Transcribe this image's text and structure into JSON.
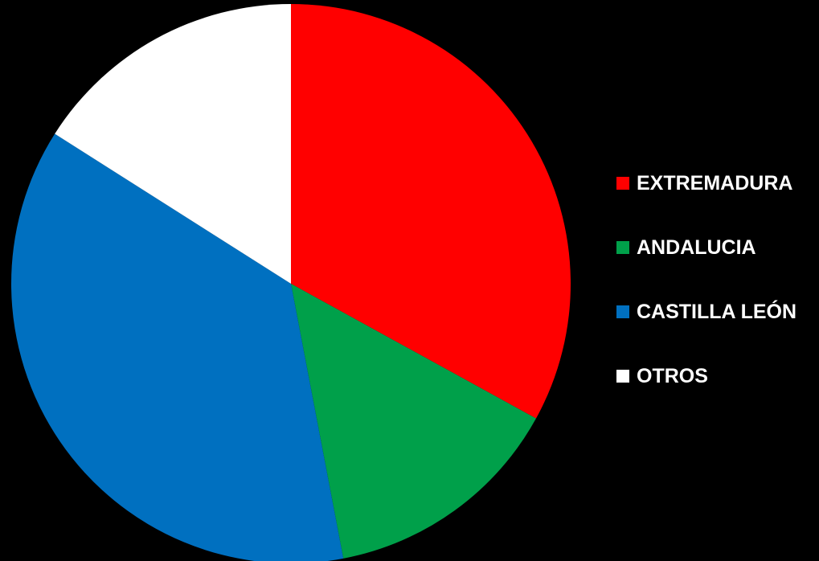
{
  "chart_data": {
    "type": "pie",
    "categories": [
      "EXTREMADURA",
      "ANDALUCIA",
      "CASTILLA LEÓN",
      "OTROS"
    ],
    "values": [
      33,
      14,
      37,
      16
    ],
    "colors": [
      "#ff0000",
      "#00a04a",
      "#0070c0",
      "#ffffff"
    ],
    "legend_position": "right",
    "start_angle": "top",
    "direction": "clockwise"
  }
}
